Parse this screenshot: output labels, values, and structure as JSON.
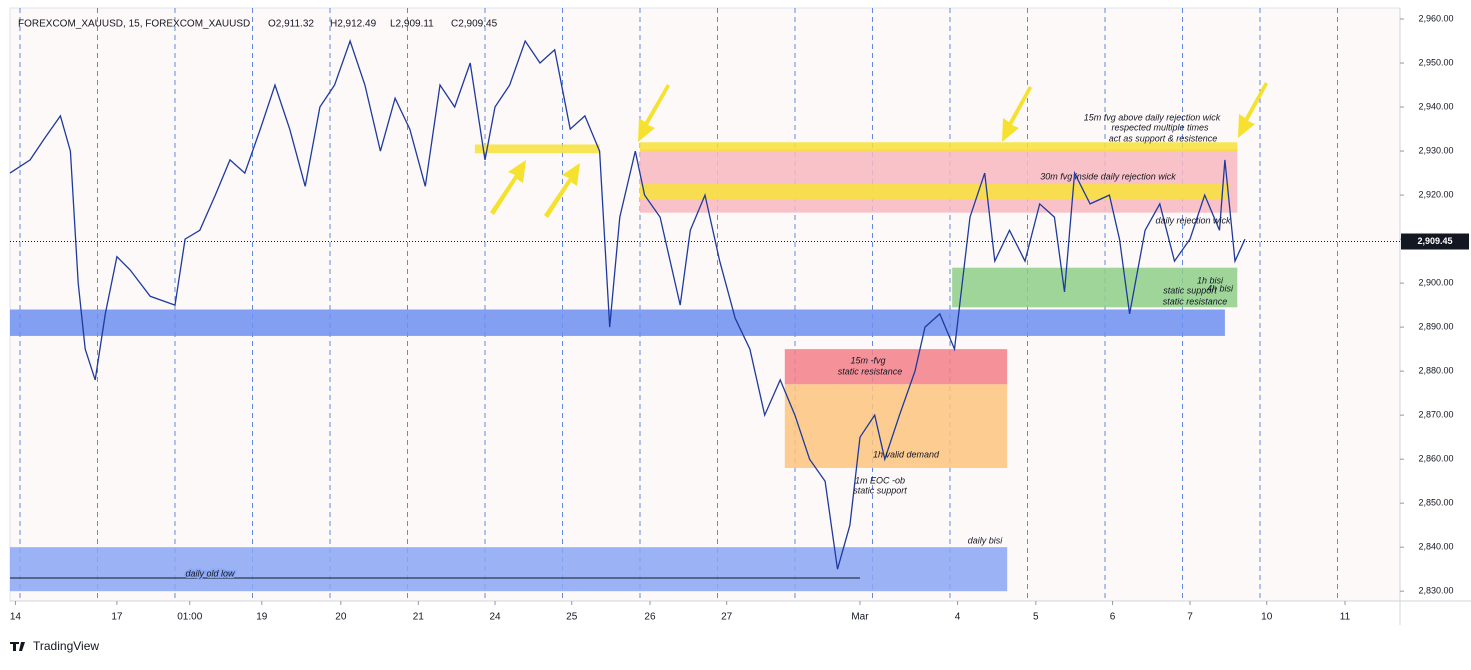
{
  "header": {
    "symbol": "FOREXCOM_XAUUSD, 15, FOREXCOM_XAUUSD",
    "open": "O2,911.32",
    "high": "H2,912.49",
    "low": "L2,909.11",
    "close": "C2,909.45"
  },
  "logo": "TradingView",
  "chart_data": {
    "type": "line",
    "xlim": [
      -0.13,
      17.81
    ],
    "ylim": [
      2828,
      2962.05
    ],
    "xticks": [
      {
        "value": -0.06,
        "label": "14"
      },
      {
        "value": 1.25,
        "label": "17"
      },
      {
        "value": 2.19,
        "label": "01:00"
      },
      {
        "value": 3.12,
        "label": "19"
      },
      {
        "value": 4.14,
        "label": "20"
      },
      {
        "value": 5.14,
        "label": "21"
      },
      {
        "value": 6.13,
        "label": "24"
      },
      {
        "value": 7.12,
        "label": "25"
      },
      {
        "value": 8.13,
        "label": "26"
      },
      {
        "value": 9.12,
        "label": "27"
      },
      {
        "value": 10.84,
        "label": "Mar"
      },
      {
        "value": 12.1,
        "label": "4"
      },
      {
        "value": 13.11,
        "label": "5"
      },
      {
        "value": 14.1,
        "label": "6"
      },
      {
        "value": 15.1,
        "label": "7"
      },
      {
        "value": 16.09,
        "label": "10"
      },
      {
        "value": 17.1,
        "label": "11"
      }
    ],
    "yticks": [
      {
        "value": 2830,
        "label": "2,830.00"
      },
      {
        "value": 2840,
        "label": "2,840.00"
      },
      {
        "value": 2850,
        "label": "2,850.00"
      },
      {
        "value": 2860,
        "label": "2,860.00"
      },
      {
        "value": 2870,
        "label": "2,870.00"
      },
      {
        "value": 2880,
        "label": "2,880.00"
      },
      {
        "value": 2890,
        "label": "2,890.00"
      },
      {
        "value": 2900,
        "label": "2,900.00"
      },
      {
        "value": 2910,
        "label": "2,910.00"
      },
      {
        "value": 2920,
        "label": "2,920.00"
      },
      {
        "value": 2930,
        "label": "2,930.00"
      },
      {
        "value": 2940,
        "label": "2,940.00"
      },
      {
        "value": 2950,
        "label": "2,950.00"
      },
      {
        "value": 2960,
        "label": "2,960.00"
      }
    ],
    "last_price": {
      "value": 2909.45,
      "label": "2,909.45"
    },
    "series": [
      {
        "color": "#1e3a9e",
        "x": [
          -0.13,
          0.13,
          0.32,
          0.52,
          0.65,
          0.75,
          0.84,
          0.97,
          1.1,
          1.25,
          1.42,
          1.68,
          2.0,
          2.13,
          2.32,
          2.52,
          2.71,
          2.9,
          3.1,
          3.29,
          3.48,
          3.68,
          3.87,
          4.06,
          4.26,
          4.45,
          4.65,
          4.84,
          5.03,
          5.23,
          5.42,
          5.61,
          5.81,
          6.0,
          6.13,
          6.32,
          6.52,
          6.71,
          6.9,
          7.1,
          7.29,
          7.48,
          7.61,
          7.74,
          7.94,
          8.06,
          8.26,
          8.52,
          8.65,
          8.84,
          9.03,
          9.23,
          9.42,
          9.61,
          9.81,
          10.0,
          10.19,
          10.39,
          10.55,
          10.71,
          10.84,
          11.03,
          11.16,
          11.35,
          11.55,
          11.68,
          11.87,
          12.06,
          12.26,
          12.45,
          12.58,
          12.77,
          12.97,
          13.16,
          13.35,
          13.48,
          13.61,
          13.81,
          14.06,
          14.19,
          14.32,
          14.52,
          14.71,
          14.9,
          15.1,
          15.29,
          15.48,
          15.55,
          15.68,
          15.81
        ],
        "values": [
          2925,
          2928,
          2933,
          2938,
          2930,
          2900,
          2885,
          2878,
          2893,
          2906,
          2903,
          2897,
          2895,
          2910,
          2912,
          2920,
          2928,
          2925,
          2935,
          2945,
          2935,
          2922,
          2940,
          2945,
          2955,
          2945,
          2930,
          2942,
          2935,
          2922,
          2945,
          2940,
          2950,
          2928,
          2940,
          2945,
          2955,
          2950,
          2953,
          2935,
          2938,
          2930,
          2890,
          2915,
          2930,
          2920,
          2915,
          2895,
          2912,
          2920,
          2905,
          2892,
          2885,
          2870,
          2878,
          2870,
          2860,
          2855,
          2835,
          2845,
          2865,
          2870,
          2860,
          2870,
          2880,
          2890,
          2893,
          2885,
          2915,
          2925,
          2905,
          2912,
          2905,
          2918,
          2915,
          2898,
          2925,
          2918,
          2920,
          2910,
          2893,
          2912,
          2918,
          2905,
          2910,
          2920,
          2912,
          2928,
          2905,
          2910
        ]
      }
    ],
    "zones": [
      {
        "x": [
          -0.13,
          15.55
        ],
        "y": [
          2888,
          2894
        ],
        "color": "#6d8ff0"
      },
      {
        "x": [
          -0.13,
          12.74
        ],
        "y": [
          2830,
          2840
        ],
        "color": "#8aa6f5"
      },
      {
        "x": [
          8.0,
          15.71
        ],
        "y": [
          2916,
          2930.5
        ],
        "color": "#f7b8c0"
      },
      {
        "x": [
          5.87,
          7.48
        ],
        "y": [
          2929.5,
          2931.5
        ],
        "color": "#f7e23a"
      },
      {
        "x": [
          8.0,
          15.71
        ],
        "y": [
          2930,
          2932
        ],
        "color": "#f7e23a"
      },
      {
        "x": [
          8.0,
          15.6
        ],
        "y": [
          2919,
          2922.5
        ],
        "color": "#f7e23a"
      },
      {
        "x": [
          12.03,
          15.71
        ],
        "y": [
          2894.5,
          2903.5
        ],
        "color": "#8fcf8a"
      },
      {
        "x": [
          9.87,
          12.74
        ],
        "y": [
          2877,
          2885
        ],
        "color": "#f37f87"
      },
      {
        "x": [
          9.87,
          12.74
        ],
        "y": [
          2858,
          2877
        ],
        "color": "#fdc47e"
      }
    ],
    "levels": [
      {
        "value": 2833,
        "x": [
          -0.13,
          10.84
        ]
      }
    ],
    "annotations": [
      "15m fvg above daily rejection wick",
      "respected multiple times",
      "act as support & resistence",
      "30m fvg inside daily rejection wick",
      "daily rejection wick",
      "1h bisi",
      "static support",
      "4h bisi",
      "static resistance",
      "15m -fvg",
      "static resistance",
      "1h valid demand",
      "1m EOC -ob",
      "static support",
      "daily bisi",
      "daily old low"
    ]
  }
}
